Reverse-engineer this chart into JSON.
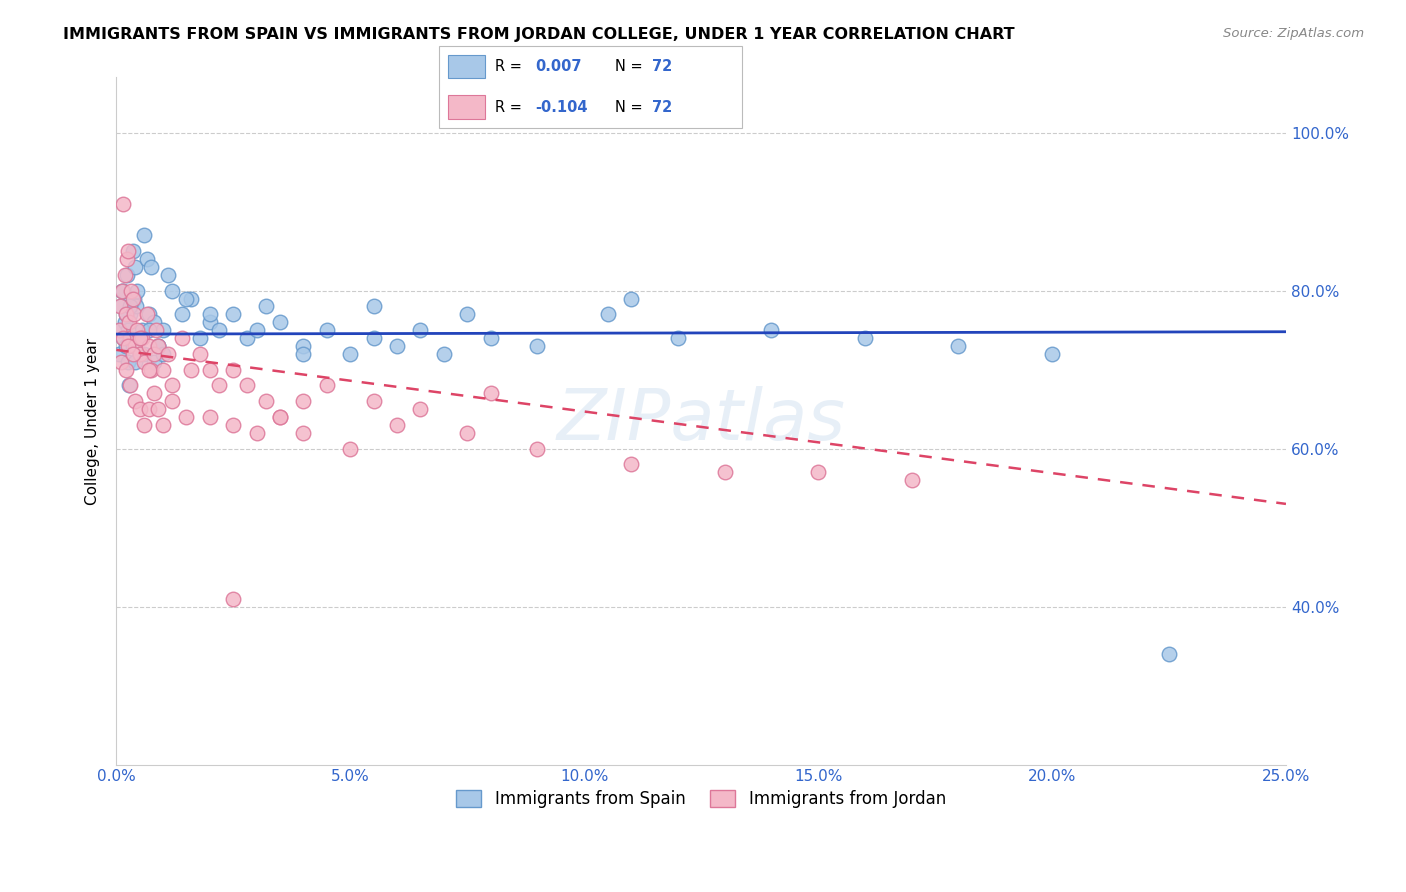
{
  "title": "IMMIGRANTS FROM SPAIN VS IMMIGRANTS FROM JORDAN COLLEGE, UNDER 1 YEAR CORRELATION CHART",
  "source": "Source: ZipAtlas.com",
  "xlabel_vals": [
    0.0,
    5.0,
    10.0,
    15.0,
    20.0,
    25.0
  ],
  "ylabel_vals": [
    40.0,
    60.0,
    80.0,
    100.0
  ],
  "xmin": 0.0,
  "xmax": 25.0,
  "ymin": 20.0,
  "ymax": 107.0,
  "ylabel": "College, Under 1 year",
  "spain_color": "#a8c8e8",
  "jordan_color": "#f4b8c8",
  "spain_edge_color": "#6699cc",
  "jordan_edge_color": "#dd7799",
  "trend_spain_color": "#2244bb",
  "trend_jordan_color": "#dd4466",
  "r_spain": 0.007,
  "r_jordan": -0.104,
  "n_spain": 72,
  "n_jordan": 72,
  "legend_spain": "Immigrants from Spain",
  "legend_jordan": "Immigrants from Jordan",
  "watermark_zip": "ZIP",
  "watermark_atlas": "atlas",
  "spain_x": [
    0.05,
    0.08,
    0.1,
    0.12,
    0.15,
    0.18,
    0.2,
    0.22,
    0.25,
    0.28,
    0.3,
    0.32,
    0.35,
    0.38,
    0.4,
    0.42,
    0.45,
    0.5,
    0.55,
    0.6,
    0.65,
    0.7,
    0.75,
    0.8,
    0.9,
    1.0,
    1.1,
    1.2,
    1.4,
    1.6,
    1.8,
    2.0,
    2.2,
    2.5,
    2.8,
    3.2,
    3.5,
    4.0,
    4.5,
    5.0,
    5.5,
    6.0,
    6.5,
    7.0,
    8.0,
    9.0,
    10.5,
    12.0,
    14.0,
    16.0,
    18.0,
    20.0,
    0.15,
    0.2,
    0.25,
    0.3,
    0.35,
    0.4,
    0.5,
    0.6,
    0.7,
    0.8,
    0.9,
    1.0,
    1.5,
    2.0,
    3.0,
    4.0,
    5.5,
    7.5,
    11.0,
    22.5
  ],
  "spain_y": [
    72,
    75,
    78,
    80,
    74,
    76,
    73,
    82,
    71,
    68,
    77,
    74,
    85,
    79,
    83,
    78,
    80,
    72,
    75,
    87,
    84,
    77,
    83,
    76,
    73,
    75,
    82,
    80,
    77,
    79,
    74,
    76,
    75,
    77,
    74,
    78,
    76,
    73,
    75,
    72,
    74,
    73,
    75,
    72,
    74,
    73,
    77,
    74,
    75,
    74,
    73,
    72,
    80,
    77,
    75,
    78,
    73,
    71,
    74,
    72,
    75,
    71,
    73,
    72,
    79,
    77,
    75,
    72,
    78,
    77,
    79,
    34
  ],
  "jordan_x": [
    0.05,
    0.08,
    0.12,
    0.15,
    0.18,
    0.2,
    0.22,
    0.25,
    0.28,
    0.3,
    0.32,
    0.35,
    0.38,
    0.4,
    0.45,
    0.5,
    0.55,
    0.6,
    0.65,
    0.7,
    0.75,
    0.8,
    0.85,
    0.9,
    1.0,
    1.1,
    1.2,
    1.4,
    1.6,
    1.8,
    2.0,
    2.2,
    2.5,
    2.8,
    3.2,
    3.5,
    4.0,
    4.5,
    5.5,
    6.5,
    8.0,
    0.1,
    0.2,
    0.3,
    0.4,
    0.5,
    0.6,
    0.7,
    0.8,
    0.9,
    1.0,
    1.2,
    1.5,
    2.0,
    2.5,
    3.0,
    3.5,
    4.0,
    5.0,
    6.0,
    7.5,
    9.0,
    11.0,
    13.0,
    15.0,
    17.0,
    0.15,
    0.25,
    0.35,
    0.5,
    0.7,
    2.5
  ],
  "jordan_y": [
    75,
    78,
    80,
    91,
    82,
    77,
    84,
    85,
    76,
    74,
    80,
    79,
    77,
    73,
    75,
    72,
    74,
    71,
    77,
    73,
    70,
    72,
    75,
    73,
    70,
    72,
    68,
    74,
    70,
    72,
    70,
    68,
    70,
    68,
    66,
    64,
    66,
    68,
    66,
    65,
    67,
    71,
    70,
    68,
    66,
    65,
    63,
    65,
    67,
    65,
    63,
    66,
    64,
    64,
    63,
    62,
    64,
    62,
    60,
    63,
    62,
    60,
    58,
    57,
    57,
    56,
    74,
    73,
    72,
    74,
    70,
    41
  ],
  "trend_spain_x0": 0.0,
  "trend_spain_x1": 25.0,
  "trend_spain_y0": 74.5,
  "trend_spain_y1": 74.8,
  "trend_jordan_x0": 0.0,
  "trend_jordan_x1": 25.0,
  "trend_jordan_y0": 72.5,
  "trend_jordan_y1": 53.0
}
